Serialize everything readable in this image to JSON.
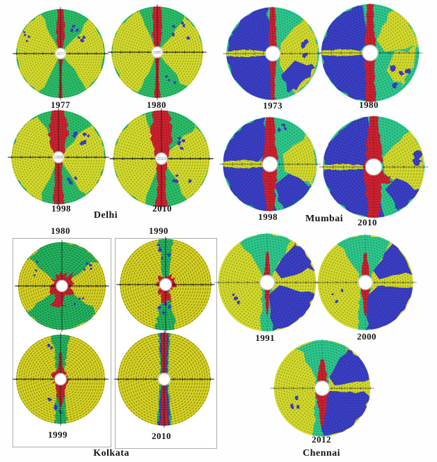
{
  "palette": {
    "Y": "#d2d92c",
    "KY": "#d7d323",
    "G": "#2abd68",
    "KG": "#23b560",
    "T": "#2dc78c",
    "R": "#cd2130",
    "B": "#3a3fc6"
  },
  "cities": [
    {
      "name": "Delhi",
      "circles": [
        {
          "year": "1977"
        },
        {
          "year": "1980"
        },
        {
          "year": "1998"
        },
        {
          "year": "2010"
        }
      ]
    },
    {
      "name": "Mumbai",
      "circles": [
        {
          "year": "1973"
        },
        {
          "year": "1980"
        },
        {
          "year": "1998"
        },
        {
          "year": "2010"
        }
      ]
    },
    {
      "name": "Kolkata",
      "circles": [
        {
          "year": "1980"
        },
        {
          "year": "1990"
        },
        {
          "year": "1999"
        },
        {
          "year": "2010"
        }
      ]
    },
    {
      "name": "Chennai",
      "circles": [
        {
          "year": "1991"
        },
        {
          "year": "2000"
        },
        {
          "year": "2012"
        }
      ]
    }
  ]
}
